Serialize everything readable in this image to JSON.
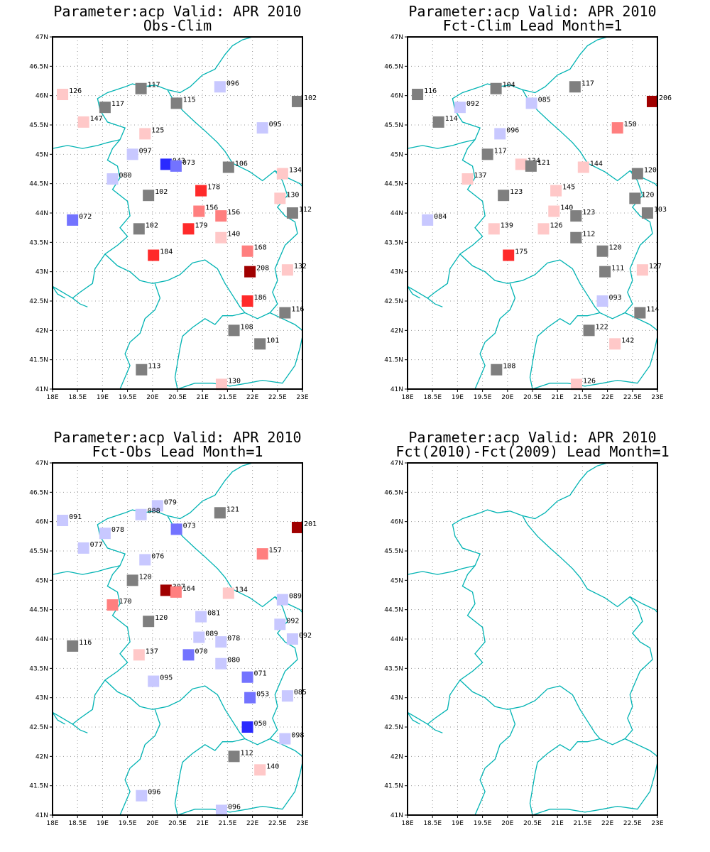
{
  "colors": {
    "border_line": "#00b3b3",
    "grid": "#9a9a9a",
    "neutral": "#7f7f7f",
    "light_red": "#ffc8c8",
    "red": "#ff7f7f",
    "bright_red": "#ff2a2a",
    "dark_red": "#a00000",
    "light_blue": "#c8c8ff",
    "blue": "#7373ff",
    "bright_blue": "#2a2aff"
  },
  "axes": {
    "lat_labels": [
      "47N",
      "46.5N",
      "46N",
      "45.5N",
      "45N",
      "44.5N",
      "44N",
      "43.5N",
      "43N",
      "42.5N",
      "42N",
      "41.5N",
      "41N"
    ],
    "lon_labels": [
      "18E",
      "18.5E",
      "19E",
      "19.5E",
      "20E",
      "20.5E",
      "21E",
      "21.5E",
      "22E",
      "22.5E",
      "23E"
    ],
    "lat_range": [
      41,
      47
    ],
    "lon_range": [
      18,
      23
    ]
  },
  "panels": [
    {
      "title1": "Parameter:acp Valid: APR 2010",
      "title2": "Obs-Clim",
      "stations": [
        {
          "lon": 18.2,
          "lat": 46.02,
          "label": "126",
          "color": "light_red"
        },
        {
          "lon": 19.77,
          "lat": 46.12,
          "label": "117",
          "color": "neutral"
        },
        {
          "lon": 21.35,
          "lat": 46.15,
          "label": "096",
          "color": "light_blue"
        },
        {
          "lon": 22.9,
          "lat": 45.9,
          "label": "102",
          "color": "neutral"
        },
        {
          "lon": 19.05,
          "lat": 45.8,
          "label": "117",
          "color": "neutral"
        },
        {
          "lon": 20.48,
          "lat": 45.87,
          "label": "115",
          "color": "neutral"
        },
        {
          "lon": 18.62,
          "lat": 45.55,
          "label": "147",
          "color": "light_red"
        },
        {
          "lon": 19.85,
          "lat": 45.35,
          "label": "125",
          "color": "light_red"
        },
        {
          "lon": 22.2,
          "lat": 45.45,
          "label": "095",
          "color": "light_blue"
        },
        {
          "lon": 19.6,
          "lat": 45.0,
          "label": "097",
          "color": "light_blue"
        },
        {
          "lon": 20.27,
          "lat": 44.83,
          "label": "043",
          "color": "bright_blue"
        },
        {
          "lon": 20.47,
          "lat": 44.8,
          "label": "073",
          "color": "blue"
        },
        {
          "lon": 21.52,
          "lat": 44.78,
          "label": "106",
          "color": "neutral"
        },
        {
          "lon": 22.6,
          "lat": 44.67,
          "label": "134",
          "color": "light_red"
        },
        {
          "lon": 19.2,
          "lat": 44.58,
          "label": "080",
          "color": "light_blue"
        },
        {
          "lon": 19.92,
          "lat": 44.3,
          "label": "102",
          "color": "neutral"
        },
        {
          "lon": 20.97,
          "lat": 44.38,
          "label": "178",
          "color": "bright_red"
        },
        {
          "lon": 22.55,
          "lat": 44.25,
          "label": "130",
          "color": "light_red"
        },
        {
          "lon": 20.93,
          "lat": 44.03,
          "label": "156",
          "color": "red"
        },
        {
          "lon": 21.37,
          "lat": 43.95,
          "label": "156",
          "color": "red"
        },
        {
          "lon": 22.8,
          "lat": 44.0,
          "label": "112",
          "color": "neutral"
        },
        {
          "lon": 18.4,
          "lat": 43.88,
          "label": "072",
          "color": "blue"
        },
        {
          "lon": 19.73,
          "lat": 43.73,
          "label": "102",
          "color": "neutral"
        },
        {
          "lon": 20.72,
          "lat": 43.73,
          "label": "179",
          "color": "bright_red"
        },
        {
          "lon": 21.37,
          "lat": 43.58,
          "label": "140",
          "color": "light_red"
        },
        {
          "lon": 21.9,
          "lat": 43.35,
          "label": "168",
          "color": "red"
        },
        {
          "lon": 20.02,
          "lat": 43.28,
          "label": "184",
          "color": "bright_red"
        },
        {
          "lon": 21.95,
          "lat": 43.0,
          "label": "208",
          "color": "dark_red"
        },
        {
          "lon": 22.7,
          "lat": 43.03,
          "label": "132",
          "color": "light_red"
        },
        {
          "lon": 21.9,
          "lat": 42.5,
          "label": "186",
          "color": "bright_red"
        },
        {
          "lon": 22.65,
          "lat": 42.3,
          "label": "116",
          "color": "neutral"
        },
        {
          "lon": 21.63,
          "lat": 42.0,
          "label": "108",
          "color": "neutral"
        },
        {
          "lon": 22.15,
          "lat": 41.77,
          "label": "101",
          "color": "neutral"
        },
        {
          "lon": 19.78,
          "lat": 41.33,
          "label": "113",
          "color": "neutral"
        },
        {
          "lon": 21.38,
          "lat": 41.08,
          "label": "130",
          "color": "light_red"
        }
      ]
    },
    {
      "title1": "Parameter:acp Valid: APR 2010",
      "title2": "Fct-Clim Lead Month=1",
      "stations": [
        {
          "lon": 18.2,
          "lat": 46.02,
          "label": "116",
          "color": "neutral"
        },
        {
          "lon": 19.77,
          "lat": 46.12,
          "label": "104",
          "color": "neutral"
        },
        {
          "lon": 21.35,
          "lat": 46.15,
          "label": "117",
          "color": "neutral"
        },
        {
          "lon": 22.9,
          "lat": 45.9,
          "label": "206",
          "color": "dark_red"
        },
        {
          "lon": 19.05,
          "lat": 45.8,
          "label": "092",
          "color": "light_blue"
        },
        {
          "lon": 20.48,
          "lat": 45.87,
          "label": "085",
          "color": "light_blue"
        },
        {
          "lon": 18.62,
          "lat": 45.55,
          "label": "114",
          "color": "neutral"
        },
        {
          "lon": 19.85,
          "lat": 45.35,
          "label": "096",
          "color": "light_blue"
        },
        {
          "lon": 22.2,
          "lat": 45.45,
          "label": "150",
          "color": "red"
        },
        {
          "lon": 19.6,
          "lat": 45.0,
          "label": "117",
          "color": "neutral"
        },
        {
          "lon": 20.27,
          "lat": 44.83,
          "label": "134",
          "color": "light_red"
        },
        {
          "lon": 20.47,
          "lat": 44.8,
          "label": "121",
          "color": "neutral"
        },
        {
          "lon": 21.52,
          "lat": 44.78,
          "label": "144",
          "color": "light_red"
        },
        {
          "lon": 22.6,
          "lat": 44.67,
          "label": "120",
          "color": "neutral"
        },
        {
          "lon": 19.2,
          "lat": 44.58,
          "label": "137",
          "color": "light_red"
        },
        {
          "lon": 19.92,
          "lat": 44.3,
          "label": "123",
          "color": "neutral"
        },
        {
          "lon": 20.97,
          "lat": 44.38,
          "label": "145",
          "color": "light_red"
        },
        {
          "lon": 22.55,
          "lat": 44.25,
          "label": "120",
          "color": "neutral"
        },
        {
          "lon": 20.93,
          "lat": 44.03,
          "label": "140",
          "color": "light_red"
        },
        {
          "lon": 21.37,
          "lat": 43.95,
          "label": "123",
          "color": "neutral"
        },
        {
          "lon": 22.8,
          "lat": 44.0,
          "label": "103",
          "color": "neutral"
        },
        {
          "lon": 18.4,
          "lat": 43.88,
          "label": "084",
          "color": "light_blue"
        },
        {
          "lon": 19.73,
          "lat": 43.73,
          "label": "139",
          "color": "light_red"
        },
        {
          "lon": 20.72,
          "lat": 43.73,
          "label": "126",
          "color": "light_red"
        },
        {
          "lon": 21.37,
          "lat": 43.58,
          "label": "112",
          "color": "neutral"
        },
        {
          "lon": 21.9,
          "lat": 43.35,
          "label": "120",
          "color": "neutral"
        },
        {
          "lon": 20.02,
          "lat": 43.28,
          "label": "175",
          "color": "bright_red"
        },
        {
          "lon": 21.95,
          "lat": 43.0,
          "label": "111",
          "color": "neutral"
        },
        {
          "lon": 22.7,
          "lat": 43.03,
          "label": "127",
          "color": "light_red"
        },
        {
          "lon": 21.9,
          "lat": 42.5,
          "label": "093",
          "color": "light_blue"
        },
        {
          "lon": 22.65,
          "lat": 42.3,
          "label": "114",
          "color": "neutral"
        },
        {
          "lon": 21.63,
          "lat": 42.0,
          "label": "122",
          "color": "neutral"
        },
        {
          "lon": 22.15,
          "lat": 41.77,
          "label": "142",
          "color": "light_red"
        },
        {
          "lon": 19.78,
          "lat": 41.33,
          "label": "108",
          "color": "neutral"
        },
        {
          "lon": 21.38,
          "lat": 41.08,
          "label": "126",
          "color": "light_red"
        }
      ]
    },
    {
      "title1": "Parameter:acp Valid: APR 2010",
      "title2": "Fct-Obs Lead Month=1",
      "stations": [
        {
          "lon": 18.2,
          "lat": 46.02,
          "label": "091",
          "color": "light_blue"
        },
        {
          "lon": 20.1,
          "lat": 46.27,
          "label": "079",
          "color": "light_blue"
        },
        {
          "lon": 19.77,
          "lat": 46.12,
          "label": "088",
          "color": "light_blue"
        },
        {
          "lon": 21.35,
          "lat": 46.15,
          "label": "121",
          "color": "neutral"
        },
        {
          "lon": 22.9,
          "lat": 45.9,
          "label": "201",
          "color": "dark_red"
        },
        {
          "lon": 19.05,
          "lat": 45.8,
          "label": "078",
          "color": "light_blue"
        },
        {
          "lon": 20.48,
          "lat": 45.87,
          "label": "073",
          "color": "blue"
        },
        {
          "lon": 18.62,
          "lat": 45.55,
          "label": "077",
          "color": "light_blue"
        },
        {
          "lon": 19.85,
          "lat": 45.35,
          "label": "076",
          "color": "light_blue"
        },
        {
          "lon": 22.2,
          "lat": 45.45,
          "label": "157",
          "color": "red"
        },
        {
          "lon": 19.6,
          "lat": 45.0,
          "label": "120",
          "color": "neutral"
        },
        {
          "lon": 20.27,
          "lat": 44.83,
          "label": "307",
          "color": "dark_red"
        },
        {
          "lon": 20.47,
          "lat": 44.8,
          "label": "164",
          "color": "red"
        },
        {
          "lon": 21.52,
          "lat": 44.78,
          "label": "134",
          "color": "light_red"
        },
        {
          "lon": 22.6,
          "lat": 44.67,
          "label": "089",
          "color": "light_blue"
        },
        {
          "lon": 19.2,
          "lat": 44.58,
          "label": "170",
          "color": "red"
        },
        {
          "lon": 19.92,
          "lat": 44.3,
          "label": "120",
          "color": "neutral"
        },
        {
          "lon": 20.97,
          "lat": 44.38,
          "label": "081",
          "color": "light_blue"
        },
        {
          "lon": 22.55,
          "lat": 44.25,
          "label": "092",
          "color": "light_blue"
        },
        {
          "lon": 20.93,
          "lat": 44.03,
          "label": "089",
          "color": "light_blue"
        },
        {
          "lon": 21.37,
          "lat": 43.95,
          "label": "078",
          "color": "light_blue"
        },
        {
          "lon": 22.8,
          "lat": 44.0,
          "label": "092",
          "color": "light_blue"
        },
        {
          "lon": 18.4,
          "lat": 43.88,
          "label": "116",
          "color": "neutral"
        },
        {
          "lon": 19.73,
          "lat": 43.73,
          "label": "137",
          "color": "light_red"
        },
        {
          "lon": 20.72,
          "lat": 43.73,
          "label": "070",
          "color": "blue"
        },
        {
          "lon": 21.37,
          "lat": 43.58,
          "label": "080",
          "color": "light_blue"
        },
        {
          "lon": 21.9,
          "lat": 43.35,
          "label": "071",
          "color": "blue"
        },
        {
          "lon": 20.02,
          "lat": 43.28,
          "label": "095",
          "color": "light_blue"
        },
        {
          "lon": 21.95,
          "lat": 43.0,
          "label": "053",
          "color": "blue"
        },
        {
          "lon": 22.7,
          "lat": 43.03,
          "label": "085",
          "color": "light_blue"
        },
        {
          "lon": 21.9,
          "lat": 42.5,
          "label": "050",
          "color": "bright_blue"
        },
        {
          "lon": 22.65,
          "lat": 42.3,
          "label": "098",
          "color": "light_blue"
        },
        {
          "lon": 21.63,
          "lat": 42.0,
          "label": "112",
          "color": "neutral"
        },
        {
          "lon": 22.15,
          "lat": 41.77,
          "label": "140",
          "color": "light_red"
        },
        {
          "lon": 19.78,
          "lat": 41.33,
          "label": "096",
          "color": "light_blue"
        },
        {
          "lon": 21.38,
          "lat": 41.08,
          "label": "096",
          "color": "light_blue"
        }
      ]
    },
    {
      "title1": "Parameter:acp Valid: APR 2010",
      "title2": "Fct(2010)-Fct(2009) Lead Month=1",
      "stations": []
    }
  ]
}
